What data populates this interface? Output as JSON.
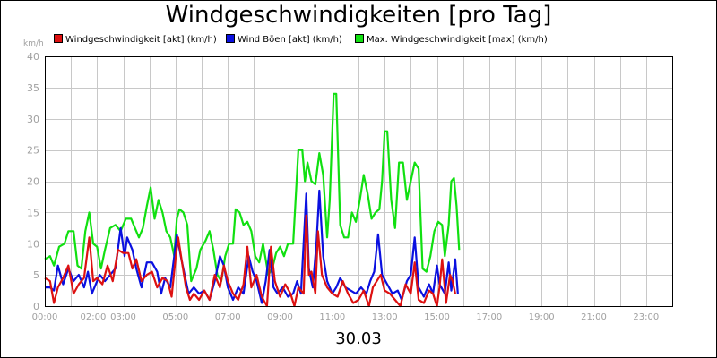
{
  "title": "Windgeschwindigkeiten [pro Tag]",
  "date_label": "30.03",
  "chart_data": {
    "type": "line",
    "title": "Windgeschwindigkeiten [pro Tag]",
    "xlabel": "30.03",
    "ylabel": "km/h",
    "ylim": [
      0,
      40
    ],
    "xlim_hours": [
      0,
      24
    ],
    "yticks": [
      "0",
      "5",
      "10",
      "15",
      "20",
      "25",
      "30",
      "35",
      "40"
    ],
    "xticks": [
      "00:00",
      "02:00",
      "03:00",
      "05:00",
      "07:00",
      "09:00",
      "11:00",
      "13:00",
      "15:00",
      "17:00",
      "19:00",
      "21:00",
      "23:00"
    ],
    "xtick_hours": [
      0,
      1.85,
      3,
      5,
      7,
      9,
      11,
      13,
      15,
      17,
      19,
      21,
      23
    ],
    "grid": true,
    "legend_position": "top",
    "series": [
      {
        "name": "Windgeschwindigkeit [akt] (km/h)",
        "color": "#dd1111",
        "points": [
          [
            0.0,
            4.5
          ],
          [
            0.2,
            4
          ],
          [
            0.35,
            0.5
          ],
          [
            0.5,
            3
          ],
          [
            0.7,
            4.5
          ],
          [
            0.9,
            6.5
          ],
          [
            1.1,
            2
          ],
          [
            1.3,
            3.5
          ],
          [
            1.5,
            4.5
          ],
          [
            1.7,
            11
          ],
          [
            1.85,
            4
          ],
          [
            2.0,
            4.5
          ],
          [
            2.2,
            3.5
          ],
          [
            2.4,
            6.5
          ],
          [
            2.6,
            4
          ],
          [
            2.8,
            9
          ],
          [
            3.0,
            8.5
          ],
          [
            3.2,
            8.5
          ],
          [
            3.35,
            6
          ],
          [
            3.5,
            7.5
          ],
          [
            3.7,
            4
          ],
          [
            3.9,
            5
          ],
          [
            4.1,
            5.5
          ],
          [
            4.3,
            3
          ],
          [
            4.5,
            4.5
          ],
          [
            4.7,
            4
          ],
          [
            4.85,
            1.5
          ],
          [
            5.0,
            7.5
          ],
          [
            5.1,
            11
          ],
          [
            5.25,
            7
          ],
          [
            5.4,
            3
          ],
          [
            5.55,
            1
          ],
          [
            5.7,
            2
          ],
          [
            5.9,
            1
          ],
          [
            6.1,
            2.5
          ],
          [
            6.3,
            1
          ],
          [
            6.5,
            5
          ],
          [
            6.7,
            3
          ],
          [
            6.85,
            6.5
          ],
          [
            7.0,
            4
          ],
          [
            7.2,
            2
          ],
          [
            7.4,
            1
          ],
          [
            7.6,
            3.5
          ],
          [
            7.75,
            9.5
          ],
          [
            7.9,
            3
          ],
          [
            8.1,
            5
          ],
          [
            8.3,
            1.5
          ],
          [
            8.5,
            0
          ],
          [
            8.65,
            9.5
          ],
          [
            8.8,
            4
          ],
          [
            9.0,
            1.5
          ],
          [
            9.2,
            3.5
          ],
          [
            9.4,
            2
          ],
          [
            9.55,
            0
          ],
          [
            9.7,
            3
          ],
          [
            9.9,
            2
          ],
          [
            10.0,
            14.5
          ],
          [
            10.1,
            5
          ],
          [
            10.2,
            5.5
          ],
          [
            10.35,
            2
          ],
          [
            10.45,
            12
          ],
          [
            10.6,
            5
          ],
          [
            10.8,
            3
          ],
          [
            11.0,
            2
          ],
          [
            11.2,
            1.5
          ],
          [
            11.4,
            4
          ],
          [
            11.6,
            2
          ],
          [
            11.8,
            0.5
          ],
          [
            12.0,
            1
          ],
          [
            12.2,
            2.5
          ],
          [
            12.4,
            0
          ],
          [
            12.55,
            3
          ],
          [
            12.7,
            4
          ],
          [
            12.85,
            5
          ],
          [
            13.0,
            2.5
          ],
          [
            13.2,
            2
          ],
          [
            13.4,
            1
          ],
          [
            13.6,
            0
          ],
          [
            13.8,
            3.5
          ],
          [
            14.0,
            2
          ],
          [
            14.15,
            7
          ],
          [
            14.3,
            1
          ],
          [
            14.5,
            0.5
          ],
          [
            14.7,
            2.5
          ],
          [
            14.85,
            2
          ],
          [
            15.0,
            0
          ],
          [
            15.1,
            3
          ],
          [
            15.2,
            7.5
          ],
          [
            15.35,
            0.5
          ],
          [
            15.5,
            5
          ],
          [
            15.6,
            4
          ],
          [
            15.7,
            2
          ]
        ]
      },
      {
        "name": "Wind Böen [akt] (km/h)",
        "color": "#0a10e0",
        "points": [
          [
            0.0,
            3
          ],
          [
            0.2,
            3
          ],
          [
            0.35,
            2.5
          ],
          [
            0.5,
            6.5
          ],
          [
            0.7,
            3.5
          ],
          [
            0.9,
            6
          ],
          [
            1.1,
            4
          ],
          [
            1.3,
            5
          ],
          [
            1.5,
            3
          ],
          [
            1.65,
            5.5
          ],
          [
            1.8,
            2
          ],
          [
            1.95,
            3.5
          ],
          [
            2.1,
            5
          ],
          [
            2.3,
            4
          ],
          [
            2.5,
            5
          ],
          [
            2.7,
            6
          ],
          [
            2.9,
            12.5
          ],
          [
            3.05,
            8
          ],
          [
            3.15,
            11
          ],
          [
            3.35,
            9
          ],
          [
            3.5,
            6
          ],
          [
            3.7,
            3
          ],
          [
            3.9,
            7
          ],
          [
            4.1,
            7
          ],
          [
            4.3,
            5.5
          ],
          [
            4.45,
            2
          ],
          [
            4.6,
            4.5
          ],
          [
            4.8,
            3
          ],
          [
            4.95,
            8
          ],
          [
            5.05,
            11.5
          ],
          [
            5.2,
            8
          ],
          [
            5.35,
            5
          ],
          [
            5.5,
            2
          ],
          [
            5.7,
            3
          ],
          [
            5.9,
            2
          ],
          [
            6.1,
            2.5
          ],
          [
            6.3,
            1
          ],
          [
            6.5,
            4
          ],
          [
            6.7,
            8
          ],
          [
            6.85,
            6.5
          ],
          [
            7.0,
            3
          ],
          [
            7.2,
            1
          ],
          [
            7.4,
            3
          ],
          [
            7.6,
            2
          ],
          [
            7.8,
            8
          ],
          [
            7.95,
            5.5
          ],
          [
            8.1,
            4
          ],
          [
            8.3,
            0.5
          ],
          [
            8.45,
            4
          ],
          [
            8.6,
            9
          ],
          [
            8.75,
            3
          ],
          [
            8.9,
            2
          ],
          [
            9.1,
            3
          ],
          [
            9.3,
            1.5
          ],
          [
            9.5,
            2
          ],
          [
            9.65,
            4
          ],
          [
            9.8,
            2
          ],
          [
            10.0,
            18
          ],
          [
            10.1,
            6
          ],
          [
            10.25,
            3
          ],
          [
            10.4,
            10.5
          ],
          [
            10.5,
            18.5
          ],
          [
            10.65,
            8
          ],
          [
            10.8,
            4
          ],
          [
            11.0,
            2
          ],
          [
            11.15,
            3
          ],
          [
            11.3,
            4.5
          ],
          [
            11.5,
            3
          ],
          [
            11.7,
            2.5
          ],
          [
            11.9,
            2
          ],
          [
            12.1,
            3
          ],
          [
            12.3,
            2
          ],
          [
            12.45,
            4
          ],
          [
            12.6,
            5.5
          ],
          [
            12.75,
            11.5
          ],
          [
            12.9,
            5
          ],
          [
            13.1,
            3.5
          ],
          [
            13.3,
            2
          ],
          [
            13.5,
            2.5
          ],
          [
            13.65,
            1
          ],
          [
            13.85,
            4
          ],
          [
            14.0,
            5
          ],
          [
            14.15,
            11
          ],
          [
            14.3,
            3
          ],
          [
            14.5,
            1.5
          ],
          [
            14.7,
            3.5
          ],
          [
            14.85,
            2
          ],
          [
            15.0,
            6.5
          ],
          [
            15.1,
            3.5
          ],
          [
            15.3,
            2
          ],
          [
            15.45,
            7
          ],
          [
            15.55,
            2.5
          ],
          [
            15.7,
            7.5
          ],
          [
            15.8,
            2
          ]
        ]
      },
      {
        "name": "Max. Windgeschwindigkeit [max] (km/h)",
        "color": "#11e011",
        "points": [
          [
            0.0,
            7.5
          ],
          [
            0.2,
            8
          ],
          [
            0.35,
            6.5
          ],
          [
            0.55,
            9.5
          ],
          [
            0.75,
            10
          ],
          [
            0.9,
            12
          ],
          [
            1.1,
            12
          ],
          [
            1.25,
            6.5
          ],
          [
            1.4,
            6
          ],
          [
            1.55,
            12
          ],
          [
            1.7,
            15
          ],
          [
            1.85,
            10
          ],
          [
            2.0,
            9.5
          ],
          [
            2.15,
            6
          ],
          [
            2.3,
            9
          ],
          [
            2.5,
            12.5
          ],
          [
            2.7,
            13
          ],
          [
            2.9,
            12
          ],
          [
            3.1,
            14
          ],
          [
            3.3,
            14
          ],
          [
            3.45,
            12.5
          ],
          [
            3.6,
            11
          ],
          [
            3.75,
            12.5
          ],
          [
            3.9,
            16
          ],
          [
            4.05,
            19
          ],
          [
            4.2,
            14
          ],
          [
            4.35,
            17
          ],
          [
            4.5,
            15
          ],
          [
            4.65,
            12
          ],
          [
            4.8,
            11
          ],
          [
            4.95,
            8
          ],
          [
            5.05,
            14
          ],
          [
            5.15,
            15.5
          ],
          [
            5.3,
            15
          ],
          [
            5.45,
            13
          ],
          [
            5.6,
            4
          ],
          [
            5.8,
            6
          ],
          [
            5.95,
            9
          ],
          [
            6.15,
            10.5
          ],
          [
            6.3,
            12
          ],
          [
            6.45,
            9
          ],
          [
            6.6,
            5
          ],
          [
            6.75,
            4
          ],
          [
            6.9,
            8
          ],
          [
            7.05,
            10
          ],
          [
            7.2,
            10
          ],
          [
            7.3,
            15.5
          ],
          [
            7.45,
            15
          ],
          [
            7.6,
            13
          ],
          [
            7.75,
            13.5
          ],
          [
            7.9,
            12
          ],
          [
            8.05,
            8
          ],
          [
            8.2,
            7
          ],
          [
            8.35,
            10
          ],
          [
            8.55,
            5
          ],
          [
            8.7,
            6
          ],
          [
            8.85,
            8.5
          ],
          [
            9.0,
            9.5
          ],
          [
            9.15,
            8
          ],
          [
            9.3,
            10
          ],
          [
            9.5,
            10
          ],
          [
            9.7,
            25
          ],
          [
            9.85,
            25
          ],
          [
            9.95,
            20
          ],
          [
            10.05,
            23
          ],
          [
            10.2,
            20
          ],
          [
            10.35,
            19.5
          ],
          [
            10.5,
            24.5
          ],
          [
            10.65,
            21
          ],
          [
            10.8,
            11
          ],
          [
            10.9,
            17
          ],
          [
            11.05,
            34
          ],
          [
            11.15,
            34
          ],
          [
            11.3,
            13
          ],
          [
            11.45,
            11
          ],
          [
            11.6,
            11
          ],
          [
            11.75,
            15
          ],
          [
            11.9,
            13.5
          ],
          [
            12.05,
            17
          ],
          [
            12.2,
            21
          ],
          [
            12.35,
            18
          ],
          [
            12.5,
            14
          ],
          [
            12.65,
            15
          ],
          [
            12.8,
            15.5
          ],
          [
            12.9,
            20
          ],
          [
            13.0,
            28
          ],
          [
            13.1,
            28
          ],
          [
            13.25,
            17
          ],
          [
            13.4,
            12.5
          ],
          [
            13.55,
            23
          ],
          [
            13.7,
            23
          ],
          [
            13.85,
            17
          ],
          [
            14.0,
            20
          ],
          [
            14.15,
            23
          ],
          [
            14.3,
            22
          ],
          [
            14.45,
            6
          ],
          [
            14.6,
            5.5
          ],
          [
            14.75,
            8
          ],
          [
            14.9,
            12
          ],
          [
            15.05,
            13.5
          ],
          [
            15.2,
            13
          ],
          [
            15.3,
            8
          ],
          [
            15.45,
            13
          ],
          [
            15.55,
            20
          ],
          [
            15.65,
            20.5
          ],
          [
            15.75,
            16
          ],
          [
            15.85,
            9
          ]
        ]
      }
    ]
  }
}
